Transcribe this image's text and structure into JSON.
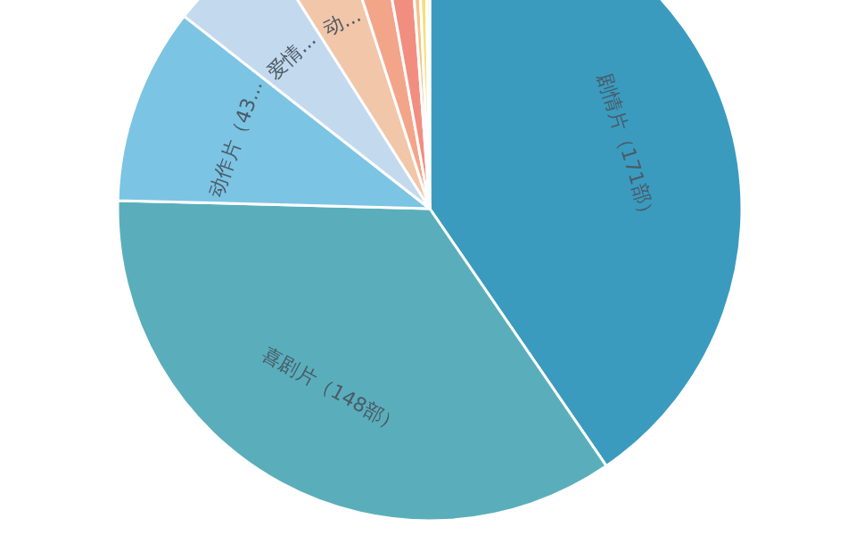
{
  "chart_data": {
    "type": "pie",
    "categories": [
      "剧情片（171部）",
      "喜剧片（148部）",
      "动作片（43...",
      "爱情...",
      "动...",
      null,
      null,
      null,
      null,
      null
    ],
    "values": [
      171,
      148,
      43,
      23,
      17,
      9,
      7,
      2,
      2,
      1
    ],
    "colors": [
      "#3a9bbf",
      "#5aaebb",
      "#7cc4e4",
      "#c3d9ee",
      "#f2c6a8",
      "#f3a58a",
      "#f28e80",
      "#f7c08a",
      "#f5e07a",
      "#f3e9a0"
    ]
  }
}
